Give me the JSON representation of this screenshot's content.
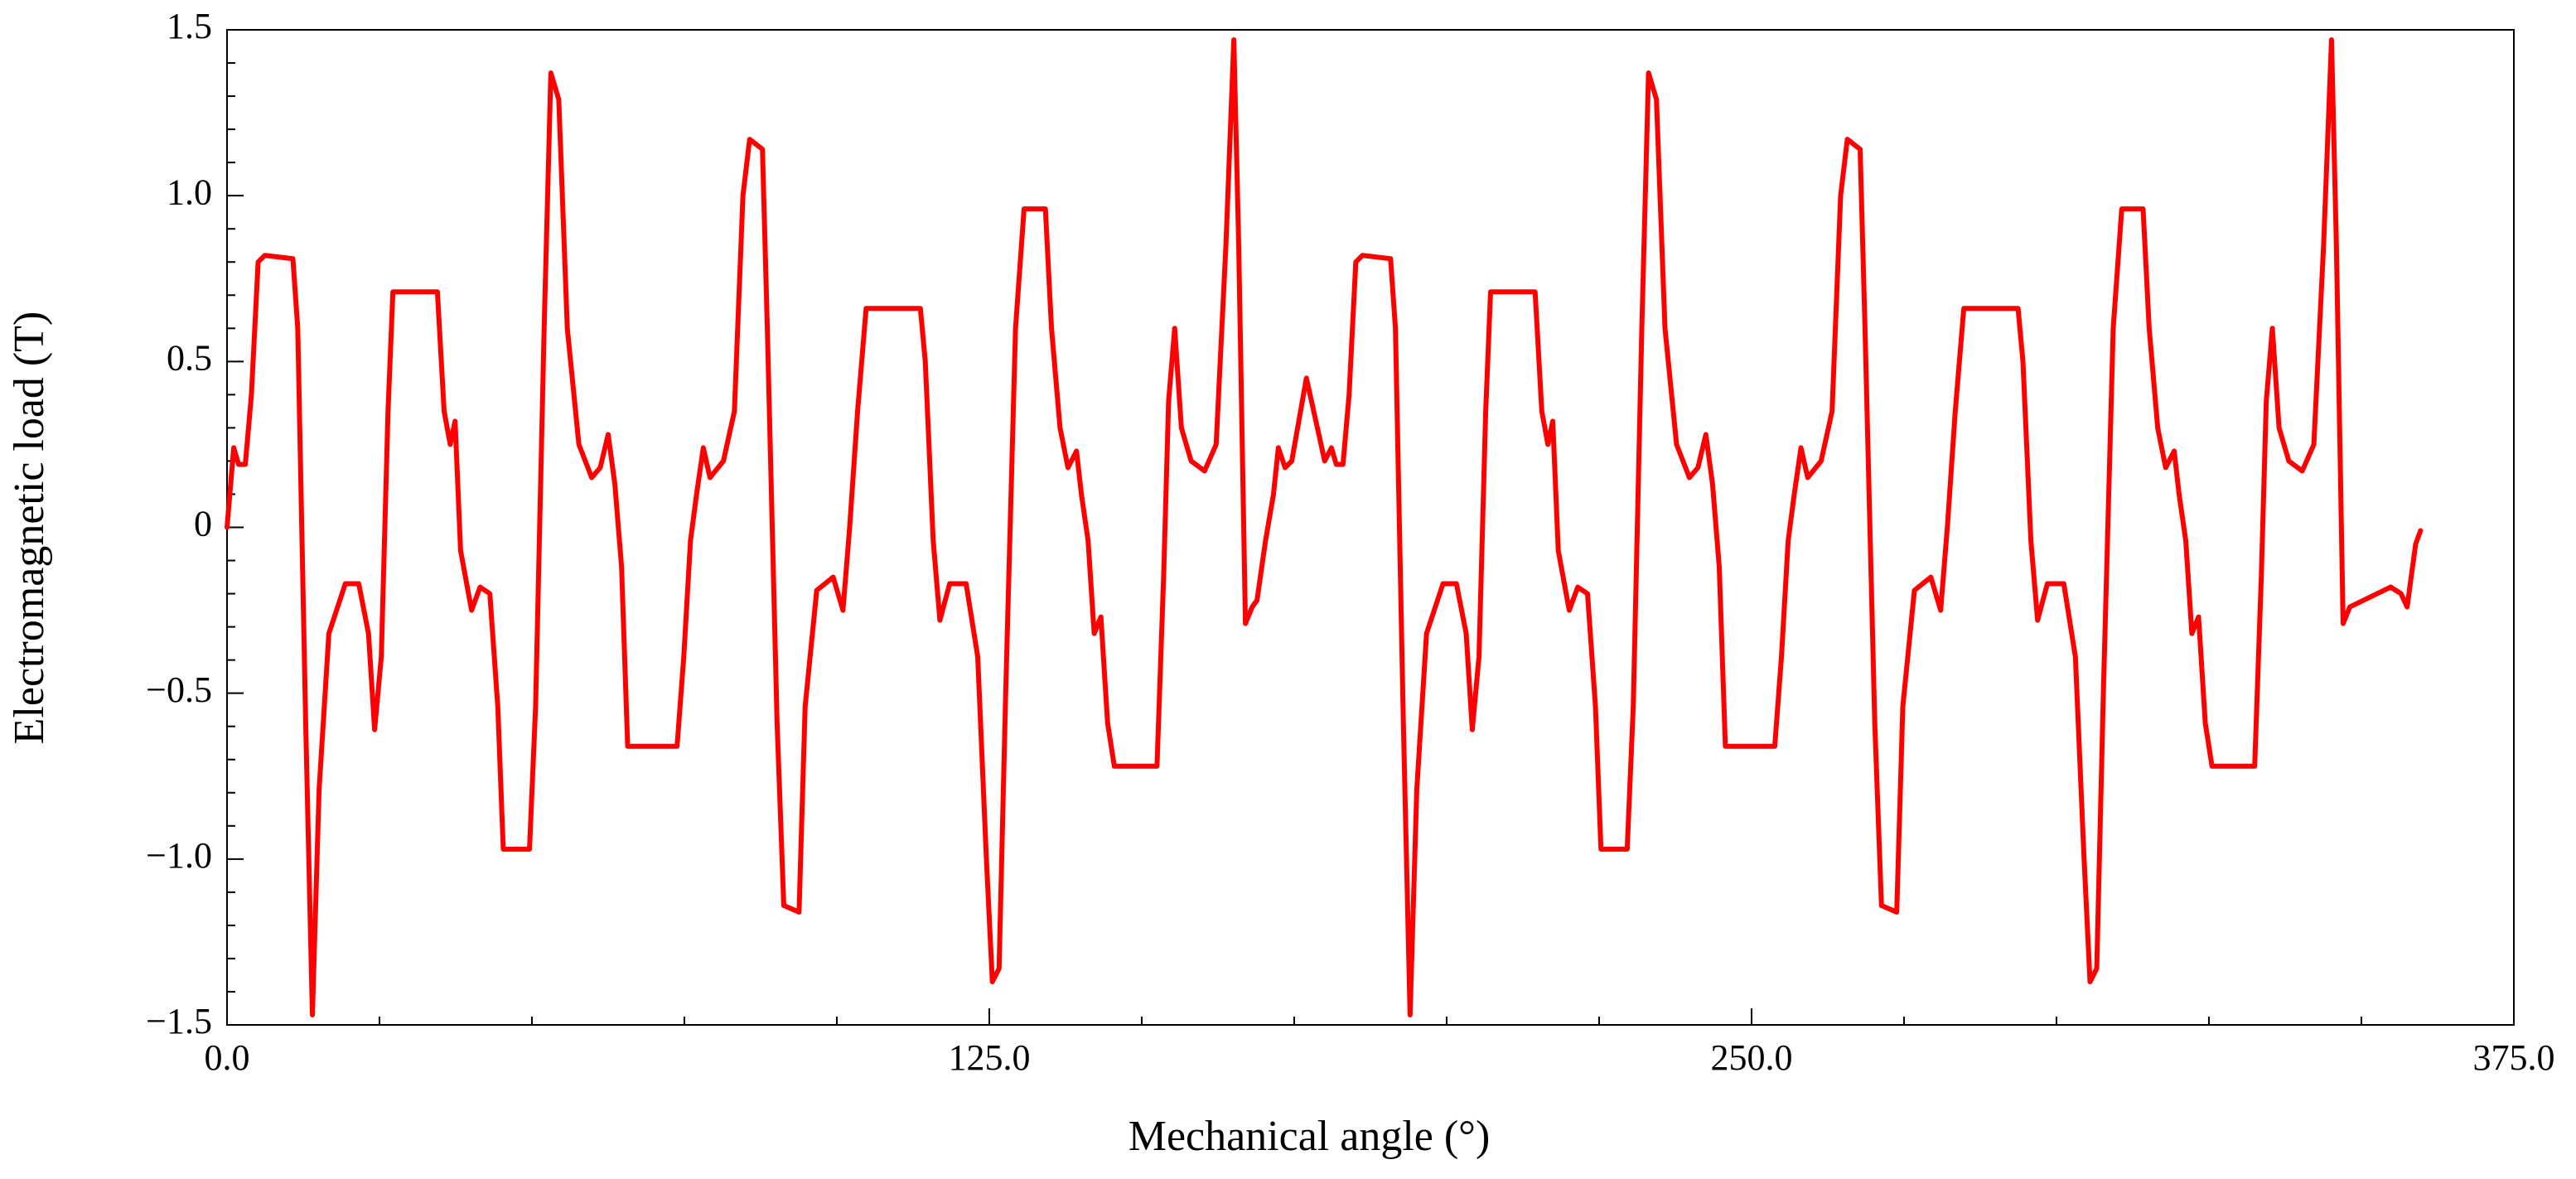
{
  "chart_data": {
    "type": "line",
    "x_label": "Mechanical angle (°)",
    "y_label": "Electromagnetic load (T)",
    "xlim": [
      0,
      375
    ],
    "ylim": [
      -1.5,
      1.5
    ],
    "xticks": [
      {
        "value": 0,
        "label": "0.0"
      },
      {
        "value": 125,
        "label": "125.0"
      },
      {
        "value": 250,
        "label": "250.0"
      },
      {
        "value": 375,
        "label": "375.0"
      }
    ],
    "yticks": [
      {
        "value": -1.5,
        "label": "−1.5"
      },
      {
        "value": -1,
        "label": "−1.0"
      },
      {
        "value": -0.5,
        "label": "−0.5"
      },
      0,
      {
        "value": 0.5,
        "label": "0.5"
      },
      {
        "value": 1,
        "label": "1.0"
      },
      {
        "value": 1.5,
        "label": "1.5"
      }
    ],
    "grid": false,
    "series": [
      {
        "color": "#ff0000",
        "x": [
          0,
          1.1,
          1.9,
          3.0,
          4.0,
          5.1,
          6.2,
          10.8,
          11.6,
          12.9,
          14.0,
          15.1,
          16.7,
          19.4,
          21.6,
          23.2,
          24.2,
          25.3,
          26.4,
          27.2,
          34.5,
          35.6,
          36.6,
          37.4,
          38.3,
          39.3,
          40.1,
          41.5,
          43.1,
          44.4,
          45.3,
          49.6,
          50.6,
          52.0,
          53.1,
          54.4,
          55.8,
          57.7,
          59.8,
          61.2,
          62.5,
          63.6,
          64.7,
          65.7,
          73.8,
          74.9,
          76.0,
          77.0,
          78.1,
          79.2,
          81.4,
          83.2,
          84.6,
          85.7,
          87.8,
          88.6,
          90.2,
          91.3,
          93.8,
          94.8,
          96.7,
          99.4,
          101.0,
          102.1,
          103.4,
          104.8,
          113.7,
          114.5,
          115.8,
          116.9,
          118.5,
          121.2,
          123.1,
          124.5,
          125.5,
          126.6,
          127.7,
          129.3,
          130.7,
          134.2,
          135.2,
          136.6,
          137.9,
          139.3,
          140.1,
          141.2,
          142.2,
          143.3,
          144.4,
          145.5,
          152.5,
          153.6,
          154.4,
          155.4,
          156.5,
          158.1,
          160.3,
          162.2,
          163.8,
          165.1,
          165.9,
          167.0,
          168.1,
          168.9,
          170.3,
          171.6,
          172.4,
          173.5,
          174.6,
          177.0,
          180,
          181.1,
          181.9,
          183.0,
          184.0,
          185.1,
          186.2,
          190.8,
          191.6,
          192.9,
          194.0,
          195.1,
          196.7,
          199.4,
          201.6,
          203.2,
          204.2,
          205.3,
          206.4,
          207.2,
          214.5,
          215.6,
          216.6,
          217.4,
          218.3,
          219.3,
          220.1,
          221.5,
          223.1,
          224.4,
          225.3,
          229.6,
          230.6,
          232.0,
          233.1,
          234.4,
          235.8,
          237.7,
          239.8,
          241.2,
          242.5,
          243.6,
          244.7,
          245.7,
          253.8,
          254.9,
          256.0,
          257.0,
          258.1,
          259.2,
          261.4,
          263.2,
          264.6,
          265.7,
          267.8,
          268.6,
          270.2,
          271.3,
          273.8,
          274.8,
          276.7,
          279.4,
          281.0,
          282.1,
          283.4,
          284.8,
          293.7,
          294.5,
          295.8,
          296.9,
          298.5,
          301.2,
          303.1,
          304.5,
          305.5,
          306.6,
          307.7,
          309.3,
          310.7,
          314.2,
          315.2,
          316.6,
          317.9,
          319.3,
          320.1,
          321.2,
          322.2,
          323.3,
          324.4,
          325.5,
          332.5,
          333.6,
          334.4,
          335.4,
          336.5,
          338.1,
          340.3,
          342.2,
          343.8,
          345.1,
          345.9,
          347.0,
          348.1,
          354.8,
          356.5,
          357.5,
          358.9,
          359.7
        ],
        "values": [
          0,
          0.24,
          0.19,
          0.19,
          0.4,
          0.8,
          0.82,
          0.81,
          0.6,
          -0.59,
          -1.47,
          -0.79,
          -0.32,
          -0.17,
          -0.17,
          -0.32,
          -0.61,
          -0.39,
          0.35,
          0.71,
          0.71,
          0.35,
          0.25,
          0.32,
          -0.07,
          -0.17,
          -0.25,
          -0.18,
          -0.2,
          -0.54,
          -0.97,
          -0.97,
          -0.54,
          0.6,
          1.37,
          1.29,
          0.6,
          0.25,
          0.15,
          0.18,
          0.28,
          0.13,
          -0.12,
          -0.66,
          -0.66,
          -0.39,
          -0.04,
          0.1,
          0.24,
          0.15,
          0.2,
          0.35,
          1.0,
          1.17,
          1.14,
          0.6,
          -0.59,
          -1.14,
          -1.16,
          -0.54,
          -0.19,
          -0.15,
          -0.25,
          0.0,
          0.35,
          0.66,
          0.66,
          0.5,
          -0.04,
          -0.28,
          -0.17,
          -0.17,
          -0.39,
          -0.99,
          -1.37,
          -1.33,
          -0.49,
          0.6,
          0.96,
          0.96,
          0.6,
          0.3,
          0.18,
          0.23,
          0.1,
          -0.04,
          -0.32,
          -0.27,
          -0.59,
          -0.72,
          -0.72,
          -0.14,
          0.38,
          0.6,
          0.3,
          0.2,
          0.17,
          0.25,
          0.85,
          1.47,
          0.85,
          -0.29,
          -0.24,
          -0.22,
          -0.04,
          0.1,
          0.24,
          0.18,
          0.2,
          0.45,
          0.2,
          0.24,
          0.19,
          0.19,
          0.4,
          0.8,
          0.82,
          0.81,
          0.6,
          -0.59,
          -1.47,
          -0.79,
          -0.32,
          -0.17,
          -0.17,
          -0.32,
          -0.61,
          -0.39,
          0.35,
          0.71,
          0.71,
          0.35,
          0.25,
          0.32,
          -0.07,
          -0.17,
          -0.25,
          -0.18,
          -0.2,
          -0.54,
          -0.97,
          -0.97,
          -0.54,
          0.6,
          1.37,
          1.29,
          0.6,
          0.25,
          0.15,
          0.18,
          0.28,
          0.13,
          -0.12,
          -0.66,
          -0.66,
          -0.39,
          -0.04,
          0.1,
          0.24,
          0.15,
          0.2,
          0.35,
          1.0,
          1.17,
          1.14,
          0.6,
          -0.59,
          -1.14,
          -1.16,
          -0.54,
          -0.19,
          -0.15,
          -0.25,
          0.0,
          0.35,
          0.66,
          0.66,
          0.5,
          -0.04,
          -0.28,
          -0.17,
          -0.17,
          -0.39,
          -0.99,
          -1.37,
          -1.33,
          -0.49,
          0.6,
          0.96,
          0.96,
          0.6,
          0.3,
          0.18,
          0.23,
          0.1,
          -0.04,
          -0.32,
          -0.27,
          -0.59,
          -0.72,
          -0.72,
          -0.14,
          0.38,
          0.6,
          0.3,
          0.2,
          0.17,
          0.25,
          0.85,
          1.47,
          0.85,
          -0.29,
          -0.24,
          -0.18,
          -0.2,
          -0.24,
          -0.05,
          -0.01
        ]
      }
    ]
  }
}
